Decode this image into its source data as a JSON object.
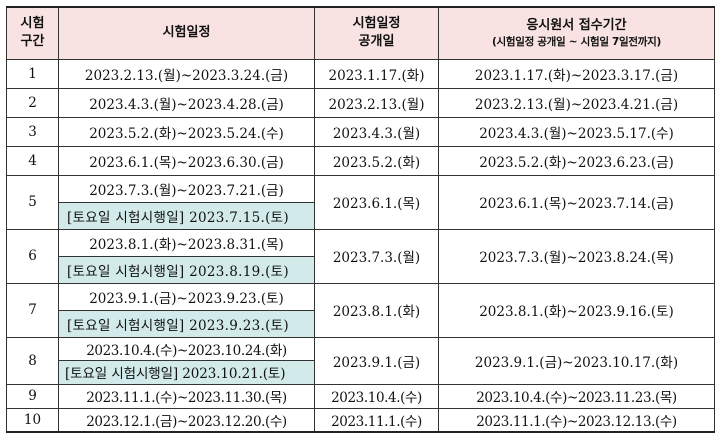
{
  "header": {
    "col_section": "시험\n구간",
    "col_schedule": "시험일정",
    "col_announce": "시험일정\n공개일",
    "col_application": "응시원서 접수기간",
    "col_application_note": "(시험일정 공개일 ~ 시험일 7일전까지)"
  },
  "rows": [
    {
      "no": "1",
      "schedule": "2023.2.13.(월)~2023.3.24.(금)",
      "announce": "2023.1.17.(화)",
      "application": "2023.1.17.(화)~2023.3.17.(금)"
    },
    {
      "no": "2",
      "schedule": "2023.4.3.(월)~2023.4.28.(금)",
      "announce": "2023.2.13.(월)",
      "application": "2023.2.13.(월)~2023.4.21.(금)"
    },
    {
      "no": "3",
      "schedule": "2023.5.2.(화)~2023.5.24.(수)",
      "announce": "2023.4.3.(월)",
      "application": "2023.4.3.(월)~2023.5.17.(수)"
    },
    {
      "no": "4",
      "schedule": "2023.6.1.(목)~2023.6.30.(금)",
      "announce": "2023.5.2.(화)",
      "application": "2023.5.2.(화)~2023.6.23.(금)"
    },
    {
      "no": "5",
      "schedule": "2023.7.3.(월)~2023.7.21.(금)",
      "saturday": "[토요일 시험시행일] 2023.7.15.(토)",
      "announce": "2023.6.1.(목)",
      "application": "2023.6.1.(목)~2023.7.14.(금)"
    },
    {
      "no": "6",
      "schedule": "2023.8.1.(화)~2023.8.31.(목)",
      "saturday": "[토요일 시험시행일] 2023.8.19.(토)",
      "announce": "2023.7.3.(월)",
      "application": "2023.7.3.(월)~2023.8.24.(목)"
    },
    {
      "no": "7",
      "schedule": "2023.9.1.(금)~2023.9.23.(토)",
      "saturday": "[토요일 시험시행일] 2023.9.23.(토)",
      "announce": "2023.8.1.(화)",
      "application": "2023.8.1.(화)~2023.9.16.(토)"
    },
    {
      "no": "8",
      "schedule": "2023.10.4.(수)~2023.10.24.(화)",
      "saturday": "[토요일 시험시행일] 2023.10.21.(토)",
      "announce": "2023.9.1.(금)",
      "application": "2023.9.1.(금)~2023.10.17.(화)"
    },
    {
      "no": "9",
      "schedule": "2023.11.1.(수)~2023.11.30.(목)",
      "announce": "2023.10.4.(수)",
      "application": "2023.10.4.(수)~2023.11.23.(목)"
    },
    {
      "no": "10",
      "schedule": "2023.12.1.(금)~2023.12.20.(수)",
      "announce": "2023.11.1.(수)",
      "application": "2023.11.1.(수)~2023.12.13.(수)"
    }
  ],
  "colors": {
    "header_bg": "#f8e3e2",
    "saturday_bg": "#d2ebea",
    "border": "#333333"
  }
}
